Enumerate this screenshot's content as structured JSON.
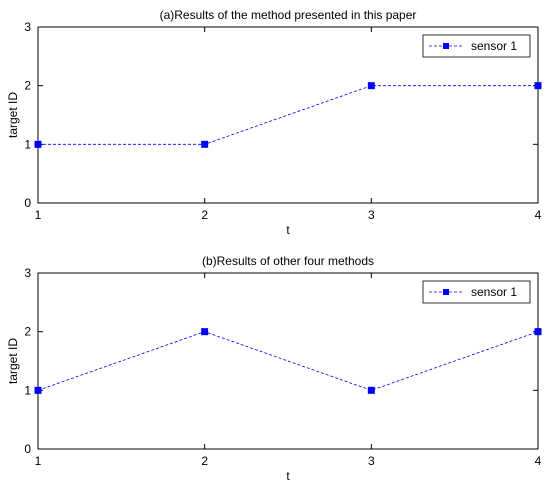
{
  "chart_data": [
    {
      "type": "line",
      "title": "(a)Results of the method presented in this paper",
      "xlabel": "t",
      "ylabel": "target ID",
      "x": [
        1,
        2,
        3,
        4
      ],
      "xlim": [
        1,
        4
      ],
      "ylim": [
        0,
        3
      ],
      "xticks": [
        "1",
        "2",
        "3",
        "4"
      ],
      "yticks": [
        "0",
        "1",
        "2",
        "3"
      ],
      "grid": false,
      "legend_position": "top-right",
      "series": [
        {
          "name": "sensor 1",
          "values": [
            1,
            1,
            2,
            2
          ],
          "color": "#0000ff",
          "marker": "square",
          "line_style": "dashed"
        }
      ]
    },
    {
      "type": "line",
      "title": "(b)Results of other four methods",
      "xlabel": "t",
      "ylabel": "target ID",
      "x": [
        1,
        2,
        3,
        4
      ],
      "xlim": [
        1,
        4
      ],
      "ylim": [
        0,
        3
      ],
      "xticks": [
        "1",
        "2",
        "3",
        "4"
      ],
      "yticks": [
        "0",
        "1",
        "2",
        "3"
      ],
      "grid": false,
      "legend_position": "top-right",
      "series": [
        {
          "name": "sensor 1",
          "values": [
            1,
            2,
            1,
            2
          ],
          "color": "#0000ff",
          "marker": "square",
          "line_style": "dashed"
        }
      ]
    }
  ]
}
